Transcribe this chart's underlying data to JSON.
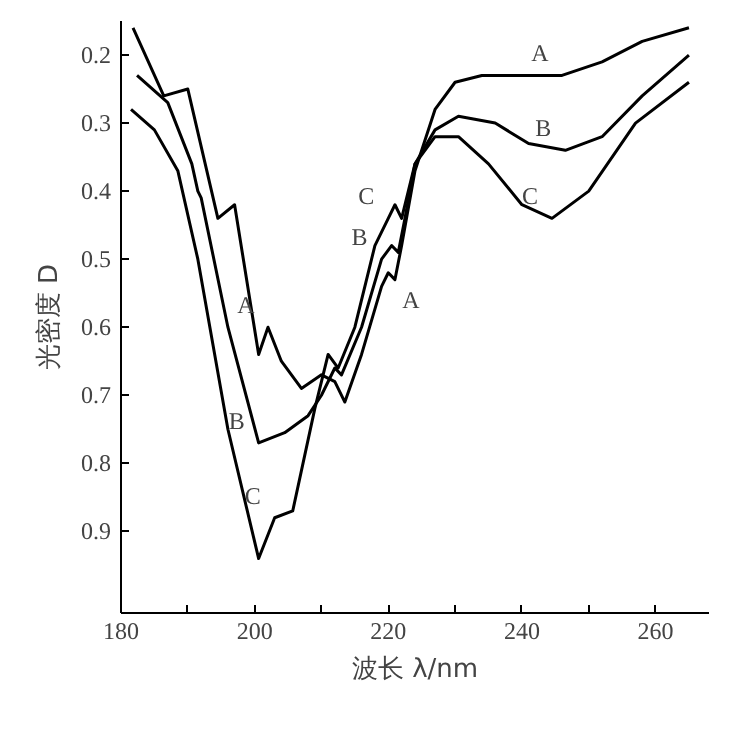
{
  "chart_data": {
    "type": "line",
    "xlabel": "波长 λ/nm",
    "ylabel": "光密度 D",
    "xlim": [
      180,
      268
    ],
    "ylim": [
      1.02,
      0.15
    ],
    "xticks": [
      180,
      {
        "value": 190,
        "label": null
      },
      200,
      {
        "value": 210,
        "label": null
      },
      220,
      {
        "value": 230,
        "label": null
      },
      240,
      {
        "value": 250,
        "label": null
      },
      260
    ],
    "yticks": [
      0.2,
      0.3,
      0.4,
      0.5,
      0.6,
      0.7,
      0.8,
      0.9
    ],
    "grid": false,
    "marker": "none",
    "line_style": "solid",
    "series": [
      {
        "color": "#000000",
        "x": [
          181.8,
          186.4,
          190,
          194.5,
          197,
          200.6,
          202,
          204,
          207,
          210,
          212,
          213.5,
          216,
          219,
          220,
          221,
          222,
          224,
          227,
          230,
          234,
          240,
          246,
          252,
          258,
          265
        ],
        "values": [
          0.16,
          0.26,
          0.25,
          0.44,
          0.42,
          0.64,
          0.6,
          0.65,
          0.69,
          0.67,
          0.68,
          0.71,
          0.64,
          0.54,
          0.52,
          0.53,
          0.48,
          0.37,
          0.28,
          0.24,
          0.23,
          0.23,
          0.23,
          0.21,
          0.18,
          0.16
        ]
      },
      {
        "color": "#000000",
        "x": [
          182.4,
          187,
          190.6,
          191.5,
          192,
          196,
          200.6,
          204.5,
          208,
          210,
          212,
          213,
          216,
          219,
          220.5,
          221.5,
          222.5,
          224,
          227,
          230.5,
          236,
          241,
          246.5,
          252,
          258,
          265
        ],
        "values": [
          0.23,
          0.27,
          0.36,
          0.4,
          0.41,
          0.6,
          0.77,
          0.755,
          0.73,
          0.7,
          0.66,
          0.67,
          0.6,
          0.5,
          0.48,
          0.49,
          0.44,
          0.36,
          0.31,
          0.29,
          0.3,
          0.33,
          0.34,
          0.32,
          0.26,
          0.2
        ]
      },
      {
        "color": "#000000",
        "x": [
          181.5,
          185,
          188.5,
          191.5,
          196,
          200.6,
          203,
          205.7,
          209,
          211,
          212.5,
          215,
          218,
          220,
          221,
          222,
          223,
          224,
          227,
          230.5,
          235,
          240,
          244.5,
          250,
          257,
          265
        ],
        "values": [
          0.28,
          0.31,
          0.37,
          0.5,
          0.75,
          0.94,
          0.88,
          0.87,
          0.72,
          0.64,
          0.66,
          0.6,
          0.48,
          0.44,
          0.42,
          0.44,
          0.4,
          0.36,
          0.32,
          0.32,
          0.36,
          0.42,
          0.44,
          0.4,
          0.3,
          0.24
        ]
      }
    ],
    "annotations": [
      {
        "text": "A",
        "x": 202,
        "y": 0.6
      },
      {
        "text": "B",
        "x": 200.6,
        "y": 0.77
      },
      {
        "text": "C",
        "x": 203,
        "y": 0.88
      },
      {
        "text": "C",
        "x": 220,
        "y": 0.44
      },
      {
        "text": "B",
        "x": 219,
        "y": 0.5
      },
      {
        "text": "A",
        "x": 221,
        "y": 0.53
      },
      {
        "text": "A",
        "x": 246,
        "y": 0.23
      },
      {
        "text": "B",
        "x": 246.5,
        "y": 0.34
      },
      {
        "text": "C",
        "x": 244.5,
        "y": 0.44
      }
    ]
  }
}
